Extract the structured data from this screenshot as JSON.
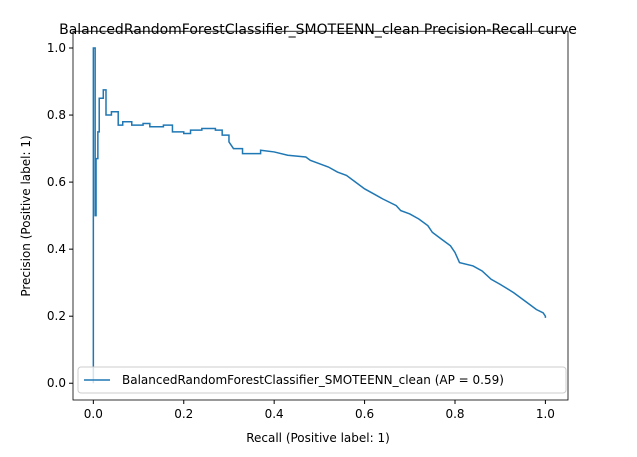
{
  "chart_data": {
    "type": "line",
    "title": "BalancedRandomForestClassifier_SMOTEENN_clean Precision-Recall curve",
    "xlabel": "Recall (Positive label: 1)",
    "ylabel": "Precision (Positive label: 1)",
    "x": [
      0,
      0,
      0.004,
      0.004,
      0.006,
      0.006,
      0.01,
      0.01,
      0.013,
      0.013,
      0.022,
      0.022,
      0.028,
      0.028,
      0.04,
      0.04,
      0.055,
      0.055,
      0.065,
      0.065,
      0.085,
      0.085,
      0.11,
      0.11,
      0.125,
      0.125,
      0.155,
      0.155,
      0.175,
      0.175,
      0.2,
      0.2,
      0.215,
      0.215,
      0.24,
      0.24,
      0.27,
      0.27,
      0.285,
      0.285,
      0.3,
      0.3,
      0.31,
      0.33,
      0.33,
      0.37,
      0.37,
      0.4,
      0.43,
      0.47,
      0.48,
      0.5,
      0.52,
      0.54,
      0.56,
      0.58,
      0.6,
      0.62,
      0.64,
      0.67,
      0.68,
      0.7,
      0.72,
      0.74,
      0.75,
      0.77,
      0.79,
      0.8,
      0.81,
      0.84,
      0.86,
      0.88,
      0.9,
      0.93,
      0.96,
      0.98,
      0.995,
      1.0,
      1.0
    ],
    "series": [
      {
        "name": "BalancedRandomForestClassifier_SMOTEENN_clean (AP = 0.59)",
        "color": "#1f77b4",
        "values": [
          0,
          1,
          1,
          0.5,
          0.5,
          0.67,
          0.67,
          0.75,
          0.75,
          0.85,
          0.85,
          0.875,
          0.875,
          0.8,
          0.8,
          0.81,
          0.81,
          0.77,
          0.77,
          0.78,
          0.78,
          0.77,
          0.77,
          0.775,
          0.775,
          0.765,
          0.765,
          0.77,
          0.77,
          0.75,
          0.75,
          0.745,
          0.745,
          0.755,
          0.755,
          0.76,
          0.76,
          0.755,
          0.755,
          0.74,
          0.74,
          0.72,
          0.7,
          0.7,
          0.685,
          0.685,
          0.695,
          0.69,
          0.68,
          0.675,
          0.665,
          0.655,
          0.645,
          0.63,
          0.62,
          0.6,
          0.58,
          0.565,
          0.55,
          0.53,
          0.515,
          0.505,
          0.49,
          0.47,
          0.45,
          0.43,
          0.41,
          0.39,
          0.36,
          0.35,
          0.335,
          0.31,
          0.295,
          0.27,
          0.24,
          0.22,
          0.21,
          0.2,
          0.195
        ]
      }
    ],
    "xlim": [
      -0.045,
      1.05
    ],
    "ylim": [
      -0.05,
      1.05
    ],
    "xticks": [
      {
        "value": 0,
        "label": "0.0"
      },
      {
        "value": 0.2,
        "label": "0.2"
      },
      {
        "value": 0.4,
        "label": "0.4"
      },
      {
        "value": 0.6,
        "label": "0.6"
      },
      {
        "value": 0.8,
        "label": "0.8"
      },
      {
        "value": 1,
        "label": "1.0"
      }
    ],
    "yticks": [
      {
        "value": 0,
        "label": "0.0"
      },
      {
        "value": 0.2,
        "label": "0.2"
      },
      {
        "value": 0.4,
        "label": "0.4"
      },
      {
        "value": 0.6,
        "label": "0.6"
      },
      {
        "value": 0.8,
        "label": "0.8"
      },
      {
        "value": 1,
        "label": "1.0"
      }
    ],
    "legend": "lower left"
  }
}
